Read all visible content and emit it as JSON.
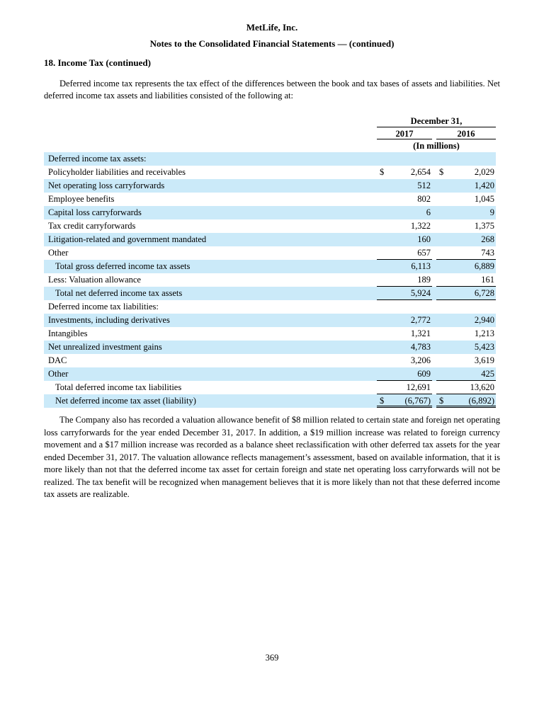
{
  "page": {
    "company": "MetLife, Inc.",
    "subtitle": "Notes to the Consolidated Financial Statements — (continued)",
    "section_heading": "18. Income Tax (continued)",
    "intro_paragraph": "Deferred income tax represents the tax effect of the differences between the book and tax bases of assets and liabilities. Net deferred income tax assets and liabilities consisted of the following at:",
    "closing_paragraph": "The Company also has recorded a valuation allowance benefit of $8 million related to certain state and foreign net operating loss carryforwards for the year ended December 31, 2017. In addition, a $19 million increase was related to foreign currency movement and a $17 million increase was recorded as a balance sheet reclassification with other deferred tax assets for the year ended December 31, 2017. The valuation allowance reflects management’s assessment, based on available information, that it is more likely than not that the deferred income tax asset for certain foreign and state net operating loss carryforwards will not be realized. The tax benefit will be recognized when management believes that it is more likely than not that these deferred income tax assets are realizable.",
    "page_number": "369"
  },
  "table": {
    "currency": "$",
    "shade_color": "#cbeaf9",
    "header": {
      "date_label": "December 31,",
      "col1": "2017",
      "col2": "2016",
      "units": "(In millions)"
    },
    "rows": [
      {
        "label": "Deferred income tax assets:",
        "v2017": "",
        "v2016": ""
      },
      {
        "label": "Policyholder liabilities and receivables",
        "v2017": "2,654",
        "v2016": "2,029",
        "dollar": true
      },
      {
        "label": "Net operating loss carryforwards",
        "v2017": "512",
        "v2016": "1,420"
      },
      {
        "label": "Employee benefits",
        "v2017": "802",
        "v2016": "1,045"
      },
      {
        "label": "Capital loss carryforwards",
        "v2017": "6",
        "v2016": "9"
      },
      {
        "label": "Tax credit carryforwards",
        "v2017": "1,322",
        "v2016": "1,375"
      },
      {
        "label": "Litigation-related and government mandated",
        "v2017": "160",
        "v2016": "268"
      },
      {
        "label": "Other",
        "v2017": "657",
        "v2016": "743",
        "rule": "single"
      },
      {
        "label": "Total gross deferred income tax assets",
        "v2017": "6,113",
        "v2016": "6,889",
        "indent": true
      },
      {
        "label": "Less: Valuation allowance",
        "v2017": "189",
        "v2016": "161",
        "rule": "single"
      },
      {
        "label": "Total net deferred income tax assets",
        "v2017": "5,924",
        "v2016": "6,728",
        "indent": true,
        "rule": "single"
      },
      {
        "label": "Deferred income tax liabilities:",
        "v2017": "",
        "v2016": ""
      },
      {
        "label": "Investments, including derivatives",
        "v2017": "2,772",
        "v2016": "2,940"
      },
      {
        "label": "Intangibles",
        "v2017": "1,321",
        "v2016": "1,213"
      },
      {
        "label": "Net unrealized investment gains",
        "v2017": "4,783",
        "v2016": "5,423"
      },
      {
        "label": "DAC",
        "v2017": "3,206",
        "v2016": "3,619"
      },
      {
        "label": "Other",
        "v2017": "609",
        "v2016": "425",
        "rule": "single"
      },
      {
        "label": "Total deferred income tax liabilities",
        "v2017": "12,691",
        "v2016": "13,620",
        "indent": true,
        "rule": "single"
      },
      {
        "label": "Net deferred income tax asset (liability)",
        "v2017": "(6,767)",
        "v2016": "(6,892)",
        "indent": true,
        "dollar": true,
        "rule": "double"
      }
    ]
  }
}
